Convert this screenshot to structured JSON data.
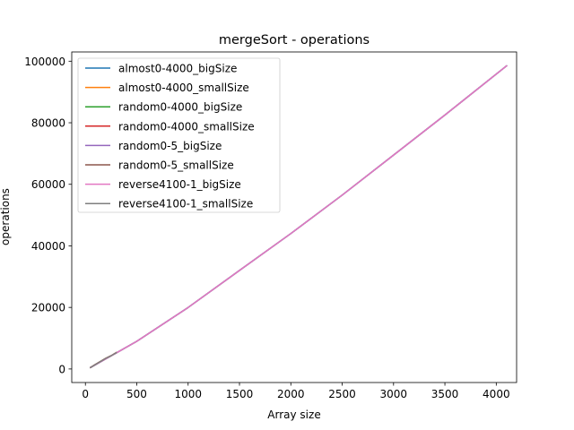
{
  "chart_data": {
    "type": "line",
    "title": "mergeSort - operations",
    "xlabel": "Array size",
    "ylabel": "operations",
    "xlim": [
      -133,
      4198
    ],
    "ylim": [
      -4400,
      103000
    ],
    "xticks": [
      0,
      500,
      1000,
      1500,
      2000,
      2500,
      3000,
      3500,
      4000
    ],
    "yticks": [
      0,
      20000,
      40000,
      60000,
      80000,
      100000
    ],
    "grid": false,
    "legend_position": "upper-left",
    "series": [
      {
        "name": "almost0-4000_bigSize",
        "color": "#1f77b4",
        "x": [
          50,
          500,
          1000,
          1500,
          2000,
          2500,
          3000,
          3500,
          4100
        ],
        "y": [
          500,
          9000,
          20000,
          32000,
          44000,
          56500,
          69500,
          82500,
          98500
        ]
      },
      {
        "name": "almost0-4000_smallSize",
        "color": "#ff7f0e",
        "x": [
          50,
          100,
          150,
          200,
          250,
          300
        ],
        "y": [
          500,
          1500,
          2500,
          3500,
          4300,
          5300
        ]
      },
      {
        "name": "random0-4000_bigSize",
        "color": "#2ca02c",
        "x": [
          50,
          500,
          1000,
          1500,
          2000,
          2500,
          3000,
          3500,
          4100
        ],
        "y": [
          500,
          9000,
          20000,
          32000,
          44000,
          56500,
          69500,
          82500,
          98500
        ]
      },
      {
        "name": "random0-4000_smallSize",
        "color": "#d62728",
        "x": [
          50,
          100,
          150,
          200,
          250,
          300
        ],
        "y": [
          500,
          1500,
          2500,
          3500,
          4300,
          5300
        ]
      },
      {
        "name": "random0-5_bigSize",
        "color": "#9467bd",
        "x": [
          50,
          500,
          1000,
          1500,
          2000,
          2500,
          3000,
          3500,
          4100
        ],
        "y": [
          500,
          9000,
          20000,
          32000,
          44000,
          56500,
          69500,
          82500,
          98500
        ]
      },
      {
        "name": "random0-5_smallSize",
        "color": "#8c564b",
        "x": [
          50,
          100,
          150,
          200,
          250,
          300
        ],
        "y": [
          500,
          1500,
          2500,
          3500,
          4300,
          5300
        ]
      },
      {
        "name": "reverse4100-1_bigSize",
        "color": "#e377c2",
        "x": [
          50,
          500,
          1000,
          1500,
          2000,
          2500,
          3000,
          3500,
          4100
        ],
        "y": [
          500,
          9000,
          20000,
          32000,
          44000,
          56500,
          69500,
          82500,
          98500
        ]
      },
      {
        "name": "reverse4100-1_smallSize",
        "color": "#7f7f7f",
        "x": [
          50,
          100,
          150,
          200,
          250,
          300
        ],
        "y": [
          500,
          1500,
          2500,
          3500,
          4300,
          5300
        ]
      }
    ]
  }
}
